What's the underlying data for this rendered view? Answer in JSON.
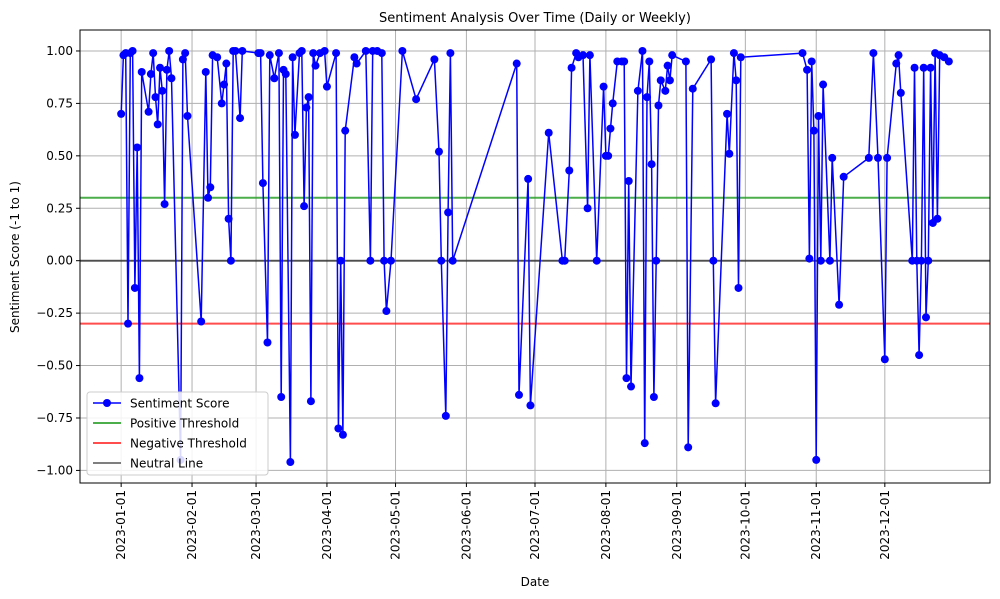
{
  "chart_data": {
    "type": "line",
    "title": "Sentiment Analysis Over Time (Daily or Weekly)",
    "xlabel": "Date",
    "ylabel": "Sentiment Score (-1 to 1)",
    "xlim": [
      "2022-12-14",
      "2024-01-16"
    ],
    "ylim": [
      -1.06,
      1.1
    ],
    "grid": true,
    "legend_position": "lower-left",
    "x_ticks": [
      "2023-01-01",
      "2023-02-01",
      "2023-03-01",
      "2023-04-01",
      "2023-05-01",
      "2023-06-01",
      "2023-07-01",
      "2023-08-01",
      "2023-09-01",
      "2023-10-01",
      "2023-11-01",
      "2023-12-01"
    ],
    "y_ticks": [
      -1.0,
      -0.75,
      -0.5,
      -0.25,
      0.0,
      0.25,
      0.5,
      0.75,
      1.0
    ],
    "y_tick_labels": [
      "−1.00",
      "−0.75",
      "−0.50",
      "−0.25",
      "0.00",
      "0.25",
      "0.50",
      "0.75",
      "1.00"
    ],
    "series": [
      {
        "name": "Sentiment Score",
        "color": "#0000ff",
        "marker": "circle",
        "points": [
          [
            "2023-01-01",
            0.7
          ],
          [
            "2023-01-02",
            0.98
          ],
          [
            "2023-01-03",
            0.99
          ],
          [
            "2023-01-04",
            -0.3
          ],
          [
            "2023-01-05",
            0.99
          ],
          [
            "2023-01-06",
            1.0
          ],
          [
            "2023-01-07",
            -0.13
          ],
          [
            "2023-01-08",
            0.54
          ],
          [
            "2023-01-09",
            -0.56
          ],
          [
            "2023-01-10",
            0.9
          ],
          [
            "2023-01-13",
            0.71
          ],
          [
            "2023-01-14",
            0.89
          ],
          [
            "2023-01-15",
            0.99
          ],
          [
            "2023-01-16",
            0.78
          ],
          [
            "2023-01-17",
            0.65
          ],
          [
            "2023-01-18",
            0.92
          ],
          [
            "2023-01-19",
            0.81
          ],
          [
            "2023-01-20",
            0.27
          ],
          [
            "2023-01-21",
            0.91
          ],
          [
            "2023-01-22",
            1.0
          ],
          [
            "2023-01-23",
            0.87
          ],
          [
            "2023-01-27",
            -0.95
          ],
          [
            "2023-01-28",
            0.96
          ],
          [
            "2023-01-29",
            0.99
          ],
          [
            "2023-01-30",
            0.69
          ],
          [
            "2023-02-05",
            -0.29
          ],
          [
            "2023-02-07",
            0.9
          ],
          [
            "2023-02-08",
            0.3
          ],
          [
            "2023-02-09",
            0.35
          ],
          [
            "2023-02-10",
            0.98
          ],
          [
            "2023-02-12",
            0.97
          ],
          [
            "2023-02-14",
            0.75
          ],
          [
            "2023-02-15",
            0.84
          ],
          [
            "2023-02-16",
            0.94
          ],
          [
            "2023-02-17",
            0.2
          ],
          [
            "2023-02-18",
            0.0
          ],
          [
            "2023-02-19",
            1.0
          ],
          [
            "2023-02-20",
            1.0
          ],
          [
            "2023-02-22",
            0.68
          ],
          [
            "2023-02-23",
            1.0
          ],
          [
            "2023-03-02",
            0.99
          ],
          [
            "2023-03-03",
            0.99
          ],
          [
            "2023-03-04",
            0.37
          ],
          [
            "2023-03-06",
            -0.39
          ],
          [
            "2023-03-07",
            0.98
          ],
          [
            "2023-03-09",
            0.87
          ],
          [
            "2023-03-11",
            0.99
          ],
          [
            "2023-03-12",
            -0.65
          ],
          [
            "2023-03-13",
            0.91
          ],
          [
            "2023-03-14",
            0.89
          ],
          [
            "2023-03-16",
            -0.96
          ],
          [
            "2023-03-17",
            0.97
          ],
          [
            "2023-03-18",
            0.6
          ],
          [
            "2023-03-20",
            0.99
          ],
          [
            "2023-03-21",
            1.0
          ],
          [
            "2023-03-22",
            0.26
          ],
          [
            "2023-03-23",
            0.73
          ],
          [
            "2023-03-24",
            0.78
          ],
          [
            "2023-03-25",
            -0.67
          ],
          [
            "2023-03-26",
            0.99
          ],
          [
            "2023-03-27",
            0.93
          ],
          [
            "2023-03-29",
            0.99
          ],
          [
            "2023-03-31",
            1.0
          ],
          [
            "2023-04-01",
            0.83
          ],
          [
            "2023-04-05",
            0.99
          ],
          [
            "2023-04-06",
            -0.8
          ],
          [
            "2023-04-07",
            0.0
          ],
          [
            "2023-04-08",
            -0.83
          ],
          [
            "2023-04-09",
            0.62
          ],
          [
            "2023-04-13",
            0.97
          ],
          [
            "2023-04-14",
            0.94
          ],
          [
            "2023-04-18",
            1.0
          ],
          [
            "2023-04-20",
            0.0
          ],
          [
            "2023-04-21",
            1.0
          ],
          [
            "2023-04-23",
            1.0
          ],
          [
            "2023-04-25",
            0.99
          ],
          [
            "2023-04-26",
            0.0
          ],
          [
            "2023-04-27",
            -0.24
          ],
          [
            "2023-04-29",
            0.0
          ],
          [
            "2023-05-04",
            1.0
          ],
          [
            "2023-05-10",
            0.77
          ],
          [
            "2023-05-18",
            0.96
          ],
          [
            "2023-05-20",
            0.52
          ],
          [
            "2023-05-21",
            0.0
          ],
          [
            "2023-05-23",
            -0.74
          ],
          [
            "2023-05-24",
            0.23
          ],
          [
            "2023-05-25",
            0.99
          ],
          [
            "2023-05-26",
            0.0
          ],
          [
            "2023-06-23",
            0.94
          ],
          [
            "2023-06-24",
            -0.64
          ],
          [
            "2023-06-28",
            0.39
          ],
          [
            "2023-06-29",
            -0.69
          ],
          [
            "2023-07-07",
            0.61
          ],
          [
            "2023-07-13",
            0.0
          ],
          [
            "2023-07-14",
            0.0
          ],
          [
            "2023-07-16",
            0.43
          ],
          [
            "2023-07-17",
            0.92
          ],
          [
            "2023-07-19",
            0.99
          ],
          [
            "2023-07-20",
            0.97
          ],
          [
            "2023-07-22",
            0.98
          ],
          [
            "2023-07-24",
            0.25
          ],
          [
            "2023-07-25",
            0.98
          ],
          [
            "2023-07-28",
            0.0
          ],
          [
            "2023-07-31",
            0.83
          ],
          [
            "2023-08-01",
            0.5
          ],
          [
            "2023-08-02",
            0.5
          ],
          [
            "2023-08-03",
            0.63
          ],
          [
            "2023-08-04",
            0.75
          ],
          [
            "2023-08-06",
            0.95
          ],
          [
            "2023-08-08",
            0.95
          ],
          [
            "2023-08-09",
            0.95
          ],
          [
            "2023-08-10",
            -0.56
          ],
          [
            "2023-08-11",
            0.38
          ],
          [
            "2023-08-12",
            -0.6
          ],
          [
            "2023-08-15",
            0.81
          ],
          [
            "2023-08-17",
            1.0
          ],
          [
            "2023-08-18",
            -0.87
          ],
          [
            "2023-08-19",
            0.78
          ],
          [
            "2023-08-20",
            0.95
          ],
          [
            "2023-08-21",
            0.46
          ],
          [
            "2023-08-22",
            -0.65
          ],
          [
            "2023-08-23",
            0.0
          ],
          [
            "2023-08-24",
            0.74
          ],
          [
            "2023-08-25",
            0.86
          ],
          [
            "2023-08-27",
            0.81
          ],
          [
            "2023-08-28",
            0.93
          ],
          [
            "2023-08-29",
            0.86
          ],
          [
            "2023-08-30",
            0.98
          ],
          [
            "2023-09-05",
            0.95
          ],
          [
            "2023-09-06",
            -0.89
          ],
          [
            "2023-09-08",
            0.82
          ],
          [
            "2023-09-16",
            0.96
          ],
          [
            "2023-09-17",
            0.0
          ],
          [
            "2023-09-18",
            -0.68
          ],
          [
            "2023-09-23",
            0.7
          ],
          [
            "2023-09-24",
            0.51
          ],
          [
            "2023-09-26",
            0.99
          ],
          [
            "2023-09-27",
            0.86
          ],
          [
            "2023-09-28",
            -0.13
          ],
          [
            "2023-09-29",
            0.97
          ],
          [
            "2023-10-26",
            0.99
          ],
          [
            "2023-10-28",
            0.91
          ],
          [
            "2023-10-29",
            0.01
          ],
          [
            "2023-10-30",
            0.95
          ],
          [
            "2023-10-31",
            0.62
          ],
          [
            "2023-11-01",
            -0.95
          ],
          [
            "2023-11-02",
            0.69
          ],
          [
            "2023-11-03",
            0.0
          ],
          [
            "2023-11-04",
            0.84
          ],
          [
            "2023-11-07",
            0.0
          ],
          [
            "2023-11-08",
            0.49
          ],
          [
            "2023-11-11",
            -0.21
          ],
          [
            "2023-11-13",
            0.4
          ],
          [
            "2023-11-24",
            0.49
          ],
          [
            "2023-11-26",
            0.99
          ],
          [
            "2023-11-28",
            0.49
          ],
          [
            "2023-12-01",
            -0.47
          ],
          [
            "2023-12-02",
            0.49
          ],
          [
            "2023-12-06",
            0.94
          ],
          [
            "2023-12-07",
            0.98
          ],
          [
            "2023-12-08",
            0.8
          ],
          [
            "2023-12-13",
            0.0
          ],
          [
            "2023-12-14",
            0.92
          ],
          [
            "2023-12-15",
            0.0
          ],
          [
            "2023-12-16",
            -0.45
          ],
          [
            "2023-12-17",
            0.0
          ],
          [
            "2023-12-18",
            0.92
          ],
          [
            "2023-12-19",
            -0.27
          ],
          [
            "2023-12-20",
            0.0
          ],
          [
            "2023-12-21",
            0.92
          ],
          [
            "2023-12-22",
            0.18
          ],
          [
            "2023-12-23",
            0.99
          ],
          [
            "2023-12-24",
            0.2
          ],
          [
            "2023-12-25",
            0.98
          ],
          [
            "2023-12-27",
            0.97
          ],
          [
            "2023-12-29",
            0.95
          ]
        ]
      }
    ],
    "reference_lines": [
      {
        "name": "Positive Threshold",
        "y": 0.3,
        "color": "#2ca02c"
      },
      {
        "name": "Negative Threshold",
        "y": -0.3,
        "color": "#ff0000"
      },
      {
        "name": "Neutral Line",
        "y": 0.0,
        "color": "#000000"
      }
    ]
  }
}
